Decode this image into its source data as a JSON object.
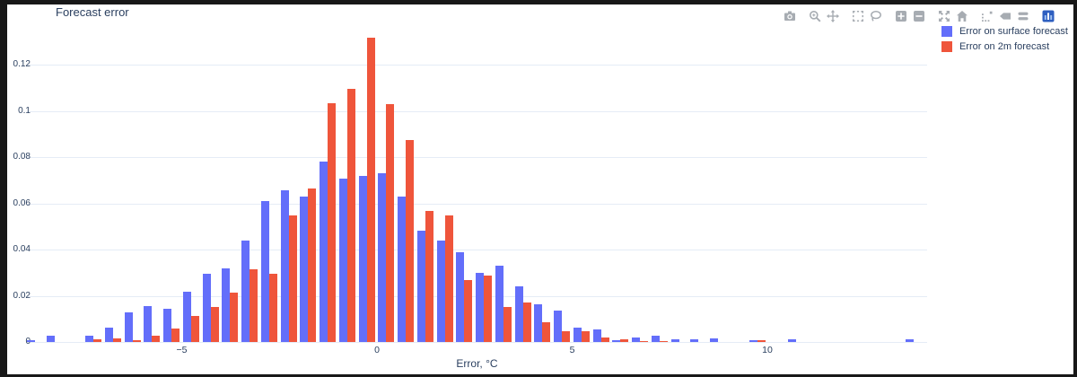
{
  "header": {
    "title": "Forecast error"
  },
  "colors": {
    "frame": "#181818",
    "background": "#ffffff",
    "text": "#2a3f5f",
    "grid": "#e5ecf6",
    "modebar_icon": "#a7acb2",
    "series_blue": "#636EFA",
    "series_red": "#EF553B"
  },
  "modebar": {
    "buttons": [
      {
        "name": "download-plot",
        "icon": "camera-icon",
        "group_gap": false
      },
      {
        "name": "zoom",
        "icon": "magnifier-icon",
        "group_gap": true
      },
      {
        "name": "pan",
        "icon": "pan-icon",
        "group_gap": false
      },
      {
        "name": "box-select",
        "icon": "box-select-icon",
        "group_gap": true
      },
      {
        "name": "lasso-select",
        "icon": "lasso-icon",
        "group_gap": false
      },
      {
        "name": "zoom-in",
        "icon": "zoom-in-icon",
        "group_gap": true
      },
      {
        "name": "zoom-out",
        "icon": "zoom-out-icon",
        "group_gap": false
      },
      {
        "name": "autoscale",
        "icon": "autoscale-icon",
        "group_gap": true
      },
      {
        "name": "reset-axes",
        "icon": "home-icon",
        "group_gap": false
      },
      {
        "name": "toggle-spikelines",
        "icon": "spikelines-icon",
        "group_gap": true
      },
      {
        "name": "compare-hover",
        "icon": "tag-icon",
        "group_gap": false
      },
      {
        "name": "closest-hover",
        "icon": "double-bars-icon",
        "group_gap": false
      },
      {
        "name": "plotly-logo",
        "icon": "plotly-logo-icon",
        "group_gap": true
      }
    ]
  },
  "chart_data": {
    "type": "bar",
    "title": "Forecast error",
    "xlabel": "Error, °C",
    "ylabel": "",
    "grid": true,
    "legend_position": "top-right",
    "bin_width": 0.5,
    "xlim": [
      -9.2,
      14.2
    ],
    "ylim": [
      0,
      0.1365
    ],
    "xticks": [
      {
        "label": "−5",
        "v": -5
      },
      {
        "label": "0",
        "v": 0
      },
      {
        "label": "5",
        "v": 5
      },
      {
        "label": "10",
        "v": 10
      }
    ],
    "yticks": [
      {
        "label": "0",
        "v": 0
      },
      {
        "label": "0.02",
        "v": 0.02
      },
      {
        "label": "0.04",
        "v": 0.04
      },
      {
        "label": "0.06",
        "v": 0.06
      },
      {
        "label": "0.08",
        "v": 0.08
      },
      {
        "label": "0.1",
        "v": 0.1
      },
      {
        "label": "0.12",
        "v": 0.12
      }
    ],
    "x": [
      -8.75,
      -8.25,
      -7.25,
      -6.75,
      -6.25,
      -5.75,
      -5.25,
      -4.75,
      -4.25,
      -3.75,
      -3.25,
      -2.75,
      -2.25,
      -1.75,
      -1.25,
      -0.75,
      -0.25,
      0.25,
      0.75,
      1.25,
      1.75,
      2.25,
      2.75,
      3.25,
      3.75,
      4.25,
      4.75,
      5.25,
      5.75,
      6.25,
      6.75,
      7.25,
      7.75,
      8.25,
      8.75,
      9.75,
      10.75,
      13.75
    ],
    "series": [
      {
        "name": "Error on surface forecast",
        "color": "#636EFA",
        "values": [
          0.0008,
          0.0028,
          0.0028,
          0.0062,
          0.013,
          0.0155,
          0.0142,
          0.0217,
          0.0295,
          0.0318,
          0.0438,
          0.061,
          0.0658,
          0.063,
          0.0781,
          0.0707,
          0.072,
          0.0731,
          0.0629,
          0.0483,
          0.0438,
          0.039,
          0.0299,
          0.0331,
          0.0239,
          0.0163,
          0.0137,
          0.0062,
          0.0053,
          0.0007,
          0.0019,
          0.0027,
          0.0013,
          0.0013,
          0.0017,
          0.0008,
          0.001,
          0.001
        ]
      },
      {
        "name": "Error on 2m forecast",
        "color": "#EF553B",
        "values": [
          0,
          0,
          0.0012,
          0.0014,
          0.0008,
          0.0028,
          0.0058,
          0.0112,
          0.015,
          0.0214,
          0.0315,
          0.0295,
          0.0548,
          0.0664,
          0.1033,
          0.1095,
          0.1315,
          0.1029,
          0.0875,
          0.0567,
          0.0548,
          0.0267,
          0.0286,
          0.015,
          0.0172,
          0.0085,
          0.0047,
          0.0047,
          0.0019,
          0.0013,
          0.0004,
          0.0004,
          0,
          0,
          0,
          0.0008,
          0,
          0
        ]
      }
    ]
  }
}
